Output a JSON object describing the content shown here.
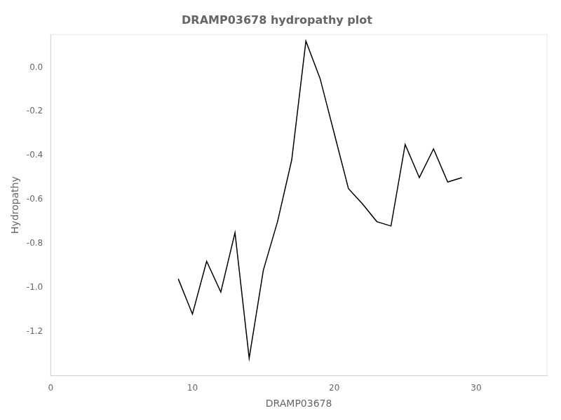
{
  "chart_data": {
    "type": "line",
    "title": "DRAMP03678 hydropathy plot",
    "xlabel": "DRAMP03678",
    "ylabel": "Hydropathy",
    "x": [
      9,
      10,
      11,
      12,
      13,
      14,
      15,
      16,
      17,
      18,
      19,
      20,
      21,
      22,
      23,
      24,
      25,
      26,
      27,
      28,
      29
    ],
    "values": [
      -0.96,
      -1.12,
      -0.88,
      -1.02,
      -0.75,
      -1.32,
      -0.92,
      -0.7,
      -0.42,
      0.12,
      -0.05,
      -0.3,
      -0.55,
      -0.62,
      -0.7,
      -0.72,
      -0.35,
      -0.5,
      -0.37,
      -0.52,
      -0.5
    ],
    "color": "#000000",
    "xlim": [
      0,
      35
    ],
    "ylim": [
      -1.4,
      0.15
    ],
    "xticks": [
      0,
      10,
      20,
      30
    ],
    "yticks": [
      -1.2,
      {
        "value": -1.0,
        "label": "-1.0"
      },
      -0.8,
      -0.6,
      -0.4,
      -0.2,
      {
        "value": 0.0,
        "label": "0.0"
      }
    ],
    "grid": false
  }
}
